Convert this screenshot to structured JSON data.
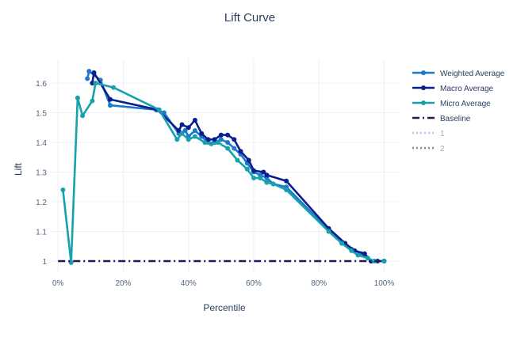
{
  "chart_data": {
    "type": "line",
    "title": "Lift Curve",
    "xlabel": "Percentile",
    "ylabel": "Lift",
    "xlim": [
      -0.02,
      1.05
    ],
    "ylim": [
      0.96,
      1.68
    ],
    "x_ticks": [
      0,
      0.2,
      0.4,
      0.6,
      0.8,
      1.0
    ],
    "x_tick_labels": [
      "0%",
      "20%",
      "40%",
      "60%",
      "80%",
      "100%"
    ],
    "y_ticks": [
      1,
      1.1,
      1.2,
      1.3,
      1.4,
      1.5,
      1.6
    ],
    "y_tick_labels": [
      "1",
      "1.1",
      "1.2",
      "1.3",
      "1.4",
      "1.5",
      "1.6"
    ],
    "grid": true,
    "legend_position": "right",
    "series": [
      {
        "name": "Weighted Average",
        "color": "#1f78c8",
        "style": "solid",
        "markers": true,
        "points": [
          [
            0.09,
            1.615
          ],
          [
            0.095,
            1.64
          ],
          [
            0.13,
            1.61
          ],
          [
            0.16,
            1.525
          ],
          [
            0.3,
            1.51
          ],
          [
            0.325,
            1.5
          ],
          [
            0.37,
            1.43
          ],
          [
            0.39,
            1.44
          ],
          [
            0.4,
            1.42
          ],
          [
            0.42,
            1.44
          ],
          [
            0.44,
            1.42
          ],
          [
            0.46,
            1.4
          ],
          [
            0.48,
            1.4
          ],
          [
            0.5,
            1.41
          ],
          [
            0.52,
            1.4
          ],
          [
            0.54,
            1.38
          ],
          [
            0.56,
            1.36
          ],
          [
            0.58,
            1.33
          ],
          [
            0.6,
            1.3
          ],
          [
            0.62,
            1.29
          ],
          [
            0.64,
            1.28
          ],
          [
            0.66,
            1.26
          ],
          [
            0.7,
            1.25
          ],
          [
            0.83,
            1.105
          ],
          [
            0.88,
            1.06
          ],
          [
            0.9,
            1.04
          ],
          [
            0.93,
            1.025
          ],
          [
            0.96,
            1.0
          ],
          [
            1.0,
            1.0
          ]
        ]
      },
      {
        "name": "Macro Average",
        "color": "#0a1f8f",
        "style": "solid",
        "markers": true,
        "points": [
          [
            0.105,
            1.6
          ],
          [
            0.11,
            1.635
          ],
          [
            0.16,
            1.545
          ],
          [
            0.305,
            1.51
          ],
          [
            0.37,
            1.44
          ],
          [
            0.38,
            1.46
          ],
          [
            0.4,
            1.45
          ],
          [
            0.42,
            1.475
          ],
          [
            0.44,
            1.43
          ],
          [
            0.46,
            1.41
          ],
          [
            0.48,
            1.41
          ],
          [
            0.5,
            1.425
          ],
          [
            0.52,
            1.425
          ],
          [
            0.54,
            1.41
          ],
          [
            0.56,
            1.37
          ],
          [
            0.585,
            1.34
          ],
          [
            0.6,
            1.305
          ],
          [
            0.63,
            1.3
          ],
          [
            0.64,
            1.29
          ],
          [
            0.7,
            1.27
          ],
          [
            0.83,
            1.11
          ],
          [
            0.88,
            1.06
          ],
          [
            0.91,
            1.035
          ],
          [
            0.94,
            1.025
          ],
          [
            0.96,
            1.0
          ],
          [
            0.98,
            1.0
          ],
          [
            1.0,
            1.0
          ]
        ]
      },
      {
        "name": "Micro Average",
        "color": "#17a2ab",
        "style": "solid",
        "markers": true,
        "points": [
          [
            0.015,
            1.24
          ],
          [
            0.04,
            0.995
          ],
          [
            0.06,
            1.55
          ],
          [
            0.075,
            1.49
          ],
          [
            0.105,
            1.54
          ],
          [
            0.115,
            1.6
          ],
          [
            0.17,
            1.585
          ],
          [
            0.31,
            1.51
          ],
          [
            0.365,
            1.41
          ],
          [
            0.38,
            1.43
          ],
          [
            0.4,
            1.41
          ],
          [
            0.42,
            1.42
          ],
          [
            0.45,
            1.4
          ],
          [
            0.47,
            1.395
          ],
          [
            0.49,
            1.4
          ],
          [
            0.52,
            1.38
          ],
          [
            0.55,
            1.34
          ],
          [
            0.58,
            1.31
          ],
          [
            0.6,
            1.28
          ],
          [
            0.62,
            1.28
          ],
          [
            0.64,
            1.265
          ],
          [
            0.66,
            1.26
          ],
          [
            0.7,
            1.24
          ],
          [
            0.83,
            1.1
          ],
          [
            0.87,
            1.06
          ],
          [
            0.9,
            1.035
          ],
          [
            0.92,
            1.02
          ],
          [
            0.95,
            1.01
          ],
          [
            0.97,
            1.0
          ],
          [
            1.0,
            1.0
          ]
        ]
      },
      {
        "name": "Baseline",
        "color": "#2a1458",
        "style": "dashdot",
        "markers": false,
        "points": [
          [
            0,
            1.0
          ],
          [
            1.0,
            1.0
          ]
        ]
      },
      {
        "name": "1",
        "color": "#c6bdea",
        "style": "dotted",
        "markers": false,
        "legend_only": true,
        "points": []
      },
      {
        "name": "2",
        "color": "#9f7896",
        "style": "dotted",
        "markers": false,
        "legend_only": true,
        "points": []
      }
    ]
  }
}
